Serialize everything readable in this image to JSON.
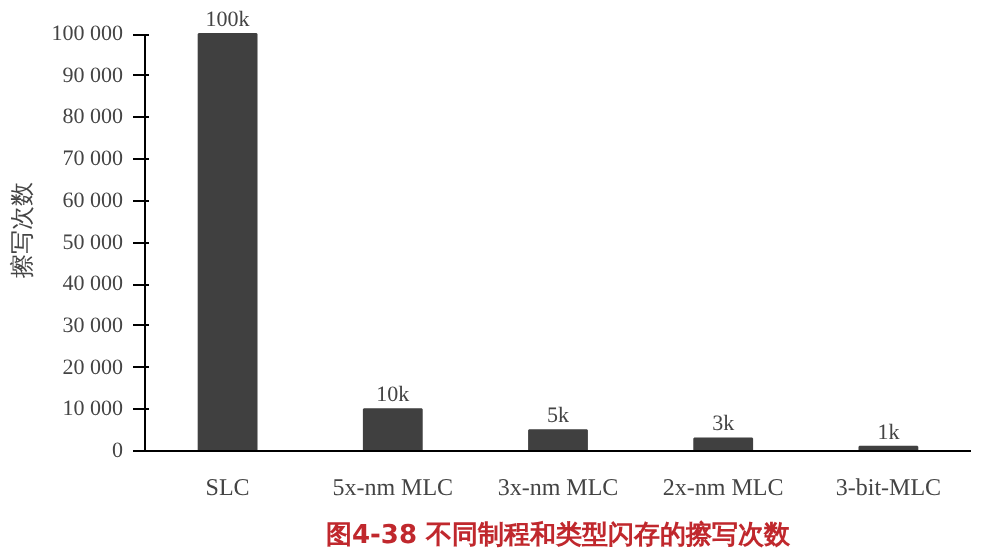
{
  "chart_data": {
    "type": "bar",
    "title": "图4-38 不同制程和类型闪存的擦写次数",
    "ylabel": "擦写次数",
    "categories": [
      "SLC",
      "5x-nm MLC",
      "3x-nm MLC",
      "2x-nm MLC",
      "3-bit-MLC"
    ],
    "values": [
      100000,
      10000,
      5000,
      3000,
      1000
    ],
    "value_labels": [
      "100k",
      "10k",
      "5k",
      "3k",
      "1k"
    ],
    "color": "#404040",
    "ylim": [
      0,
      100000
    ],
    "yticks": [
      0,
      {
        "value": 10000,
        "label": "10 000"
      },
      {
        "value": 20000,
        "label": "20 000"
      },
      {
        "value": 30000,
        "label": "30 000"
      },
      {
        "value": 40000,
        "label": "40 000"
      },
      {
        "value": 50000,
        "label": "50 000"
      },
      {
        "value": 60000,
        "label": "60 000"
      },
      {
        "value": 70000,
        "label": "70 000"
      },
      {
        "value": 80000,
        "label": "80 000"
      },
      {
        "value": 90000,
        "label": "90 000"
      },
      {
        "value": 100000,
        "label": "100 000"
      }
    ],
    "grid": false
  }
}
